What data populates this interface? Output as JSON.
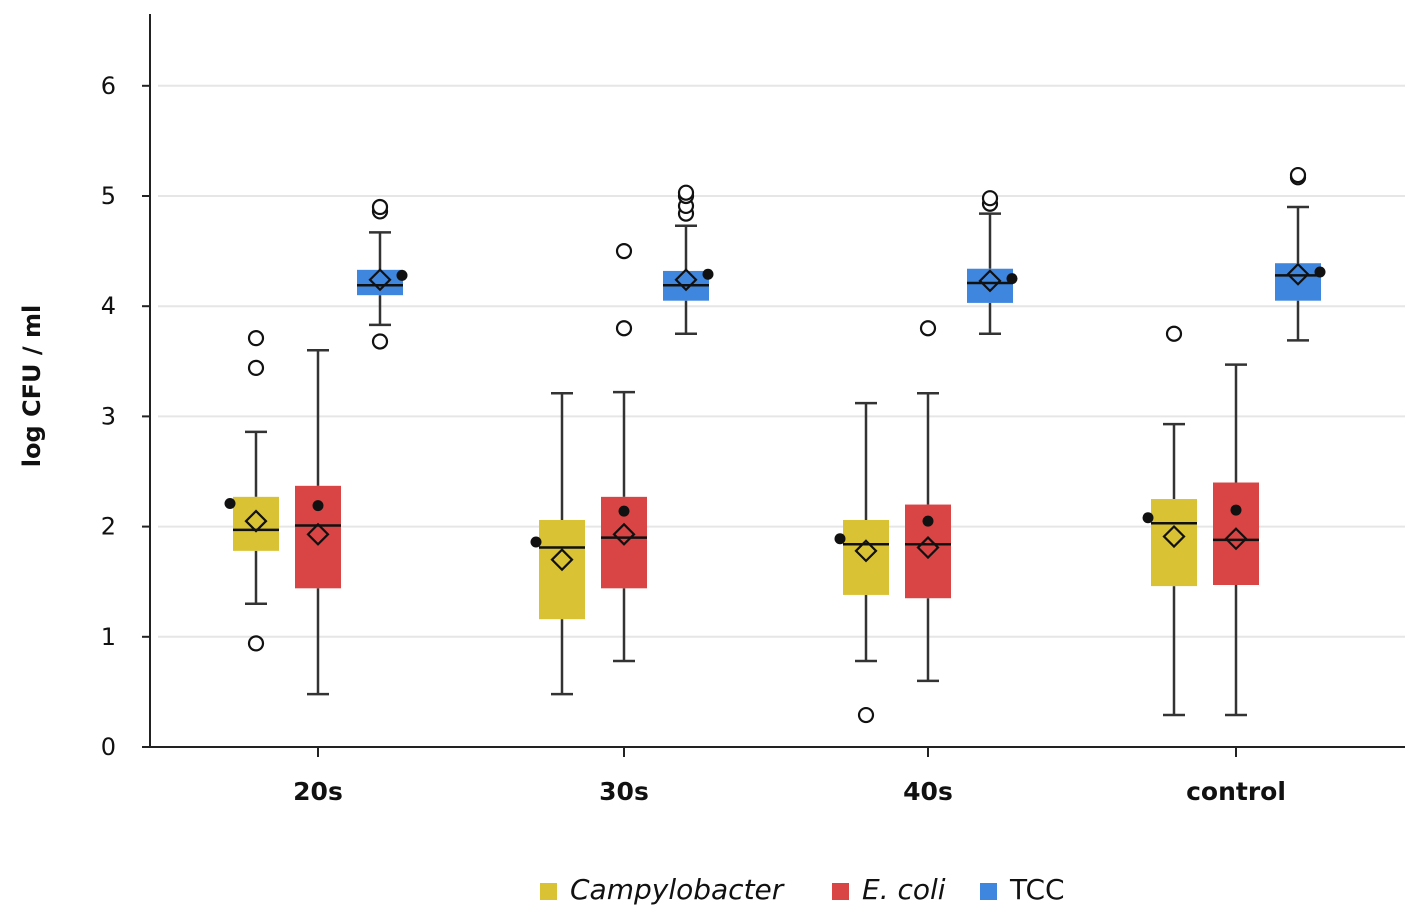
{
  "chart_data": {
    "type": "boxplot",
    "title": "",
    "xlabel": "",
    "ylabel": "log CFU / ml",
    "ylim": [
      0,
      6.6
    ],
    "yticks": [
      0,
      1,
      2,
      3,
      4,
      5,
      6
    ],
    "ytick_labels": [
      "0",
      "1",
      "2",
      "3",
      "4",
      "5",
      "6"
    ],
    "grid": true,
    "legend_position": "bottom-center",
    "categories": [
      "20s",
      "30s",
      "40s",
      "control"
    ],
    "series": [
      {
        "name": "Campylobacter",
        "italic": true,
        "color": "#d9c233",
        "boxes": [
          {
            "category": "20s",
            "whisker_low": 1.3,
            "q1": 1.78,
            "median": 1.97,
            "q3": 2.27,
            "whisker_high": 2.86,
            "mean": 2.05,
            "dot": 2.21,
            "outliers": [
              0.94,
              3.44,
              3.71
            ]
          },
          {
            "category": "30s",
            "whisker_low": 0.48,
            "q1": 1.16,
            "median": 1.81,
            "q3": 2.06,
            "whisker_high": 3.21,
            "mean": 1.7,
            "dot": 1.86,
            "outliers": []
          },
          {
            "category": "40s",
            "whisker_low": 0.78,
            "q1": 1.38,
            "median": 1.84,
            "q3": 2.06,
            "whisker_high": 3.12,
            "mean": 1.78,
            "dot": 1.89,
            "outliers": [
              0.29
            ]
          },
          {
            "category": "control",
            "whisker_low": 0.29,
            "q1": 1.46,
            "median": 2.03,
            "q3": 2.25,
            "whisker_high": 2.93,
            "mean": 1.91,
            "dot": 2.08,
            "outliers": [
              3.75
            ]
          }
        ]
      },
      {
        "name": "E. coli",
        "italic": true,
        "color": "#d94545",
        "boxes": [
          {
            "category": "20s",
            "whisker_low": 0.48,
            "q1": 1.44,
            "median": 2.01,
            "q3": 2.37,
            "whisker_high": 3.6,
            "mean": 1.93,
            "dot": 2.19,
            "outliers": []
          },
          {
            "category": "30s",
            "whisker_low": 0.78,
            "q1": 1.44,
            "median": 1.9,
            "q3": 2.27,
            "whisker_high": 3.22,
            "mean": 1.93,
            "dot": 2.14,
            "outliers": [
              3.8,
              4.5
            ]
          },
          {
            "category": "40s",
            "whisker_low": 0.6,
            "q1": 1.35,
            "median": 1.84,
            "q3": 2.2,
            "whisker_high": 3.21,
            "mean": 1.81,
            "dot": 2.05,
            "outliers": [
              3.8
            ]
          },
          {
            "category": "control",
            "whisker_low": 0.29,
            "q1": 1.47,
            "median": 1.88,
            "q3": 2.4,
            "whisker_high": 3.47,
            "mean": 1.89,
            "dot": 2.15,
            "outliers": []
          }
        ]
      },
      {
        "name": "TCC",
        "italic": false,
        "color": "#3f86de",
        "boxes": [
          {
            "category": "20s",
            "whisker_low": 3.83,
            "q1": 4.1,
            "median": 4.19,
            "q3": 4.33,
            "whisker_high": 4.67,
            "mean": 4.24,
            "dot": 4.28,
            "outliers": [
              3.68,
              4.86,
              4.9
            ]
          },
          {
            "category": "30s",
            "whisker_low": 3.75,
            "q1": 4.05,
            "median": 4.19,
            "q3": 4.32,
            "whisker_high": 4.73,
            "mean": 4.24,
            "dot": 4.29,
            "outliers": [
              4.84,
              4.91,
              5.0,
              5.03
            ]
          },
          {
            "category": "40s",
            "whisker_low": 3.75,
            "q1": 4.03,
            "median": 4.21,
            "q3": 4.34,
            "whisker_high": 4.84,
            "mean": 4.23,
            "dot": 4.25,
            "outliers": [
              4.93,
              4.98
            ]
          },
          {
            "category": "control",
            "whisker_low": 3.69,
            "q1": 4.05,
            "median": 4.28,
            "q3": 4.39,
            "whisker_high": 4.9,
            "mean": 4.29,
            "dot": 4.31,
            "outliers": [
              5.17,
              5.19
            ]
          }
        ]
      }
    ]
  }
}
